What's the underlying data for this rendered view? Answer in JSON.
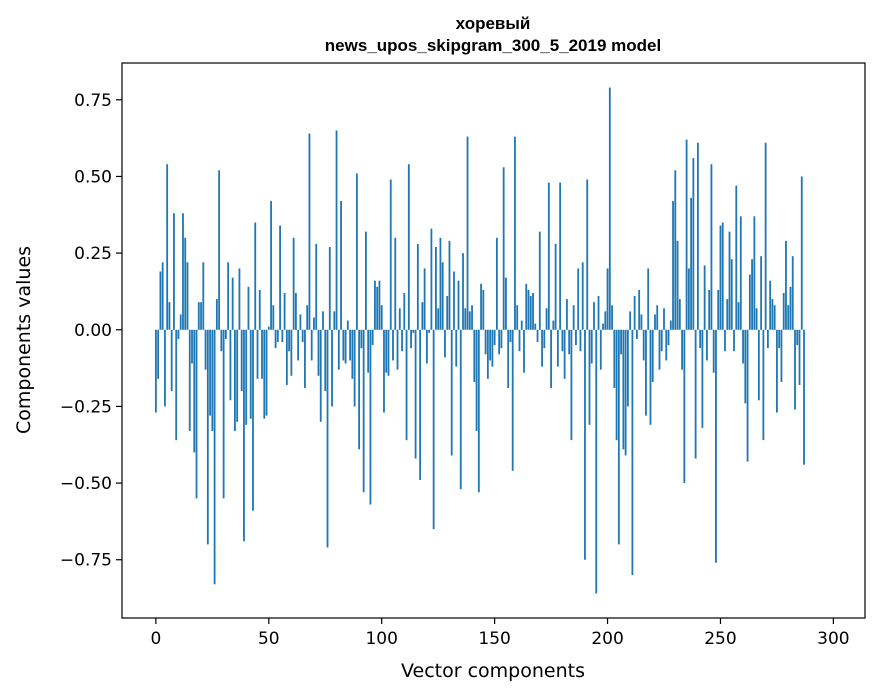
{
  "chart_data": {
    "type": "bar",
    "title": "хоревый",
    "subtitle": "news_upos_skipgram_300_5_2019 model",
    "xlabel": "Vector components",
    "ylabel": "Components values",
    "xlim": [
      -15,
      314
    ],
    "ylim": [
      -0.94,
      0.87
    ],
    "xticks": [
      0,
      50,
      100,
      150,
      200,
      250,
      300
    ],
    "xtick_labels": [
      "0",
      "50",
      "100",
      "150",
      "200",
      "250",
      "300"
    ],
    "yticks": [
      0.75,
      0.5,
      0.25,
      0.0,
      -0.25,
      -0.5,
      -0.75
    ],
    "ytick_labels": [
      "0.75",
      "0.50",
      "0.25",
      "0.00",
      "−0.25",
      "−0.50",
      "−0.75"
    ],
    "grid": false,
    "bar_color": "#1f77b4",
    "values": [
      -0.27,
      -0.16,
      0.19,
      0.22,
      -0.25,
      0.54,
      0.09,
      -0.2,
      0.38,
      -0.36,
      -0.03,
      0.05,
      0.38,
      0.3,
      0.22,
      -0.33,
      -0.11,
      -0.4,
      -0.55,
      0.09,
      0.09,
      0.22,
      -0.13,
      -0.7,
      -0.28,
      -0.33,
      -0.83,
      0.1,
      0.52,
      -0.07,
      -0.55,
      -0.03,
      0.22,
      -0.23,
      0.17,
      -0.33,
      -0.3,
      0.2,
      -0.2,
      -0.69,
      -0.31,
      0.14,
      -0.29,
      -0.59,
      0.35,
      -0.16,
      0.13,
      -0.16,
      -0.29,
      -0.28,
      0.01,
      0.42,
      0.08,
      -0.06,
      -0.04,
      0.34,
      -0.04,
      0.12,
      -0.18,
      -0.07,
      -0.15,
      0.3,
      0.12,
      -0.1,
      0.05,
      -0.04,
      -0.19,
      0.08,
      0.64,
      -0.1,
      0.04,
      0.28,
      -0.15,
      -0.3,
      0.06,
      -0.2,
      -0.71,
      0.27,
      -0.25,
      0.06,
      0.65,
      -0.13,
      0.42,
      -0.1,
      -0.11,
      0.03,
      -0.1,
      -0.16,
      -0.25,
      0.51,
      -0.39,
      -0.06,
      -0.53,
      0.32,
      -0.14,
      -0.57,
      -0.05,
      0.16,
      0.14,
      0.16,
      0.08,
      -0.27,
      -0.14,
      -0.15,
      0.49,
      -0.1,
      0.3,
      -0.13,
      0.07,
      -0.07,
      0.12,
      -0.36,
      0.54,
      -0.06,
      -0.01,
      -0.42,
      0.28,
      -0.49,
      0.09,
      0.2,
      -0.11,
      -0.01,
      0.33,
      -0.65,
      0.27,
      0.07,
      0.3,
      0.22,
      -0.09,
      0.11,
      0.29,
      -0.41,
      0.19,
      -0.12,
      0.16,
      -0.52,
      0.25,
      0.07,
      0.63,
      0.06,
      0.08,
      -0.17,
      -0.33,
      -0.53,
      0.15,
      0.13,
      -0.08,
      -0.16,
      -0.1,
      -0.12,
      -0.05,
      0.3,
      -0.08,
      -0.06,
      0.53,
      0.17,
      -0.19,
      -0.04,
      -0.46,
      0.63,
      0.08,
      -0.07,
      0.03,
      -0.14,
      0.15,
      0.13,
      0.11,
      0.12,
      0.02,
      -0.04,
      0.32,
      -0.12,
      -0.06,
      0.07,
      0.48,
      -0.19,
      0.03,
      0.28,
      -0.12,
      0.48,
      -0.07,
      -0.16,
      0.1,
      -0.08,
      -0.36,
      0.08,
      -0.05,
      0.2,
      -0.07,
      0.22,
      -0.75,
      0.49,
      -0.31,
      -0.11,
      0.09,
      -0.86,
      0.11,
      -0.13,
      0.02,
      0.06,
      0.2,
      0.79,
      0.08,
      -0.19,
      -0.36,
      -0.7,
      -0.08,
      -0.39,
      -0.41,
      -0.25,
      0.06,
      -0.8,
      0.11,
      -0.03,
      0.13,
      0.05,
      -0.1,
      -0.28,
      0.2,
      -0.31,
      -0.17,
      0.05,
      0.08,
      -0.13,
      -0.07,
      0.07,
      -0.1,
      -0.05,
      0.03,
      0.42,
      0.52,
      0.29,
      0.1,
      -0.13,
      -0.5,
      0.62,
      0.2,
      0.43,
      0.56,
      -0.42,
      0.61,
      -0.06,
      -0.32,
      0.21,
      -0.1,
      0.13,
      0.54,
      -0.14,
      -0.76,
      0.13,
      0.34,
      0.35,
      -0.07,
      0.1,
      0.32,
      0.23,
      -0.07,
      0.47,
      0.09,
      0.37,
      -0.11,
      -0.24,
      -0.43,
      0.18,
      0.23,
      0.37,
      0.07,
      -0.23,
      0.24,
      -0.36,
      0.61,
      -0.06,
      0.16,
      0.1,
      0.08,
      -0.27,
      -0.06,
      -0.17,
      0.12,
      0.29,
      0.08,
      0.14,
      0.24,
      -0.26,
      -0.05,
      -0.18,
      0.5,
      -0.44
    ]
  }
}
